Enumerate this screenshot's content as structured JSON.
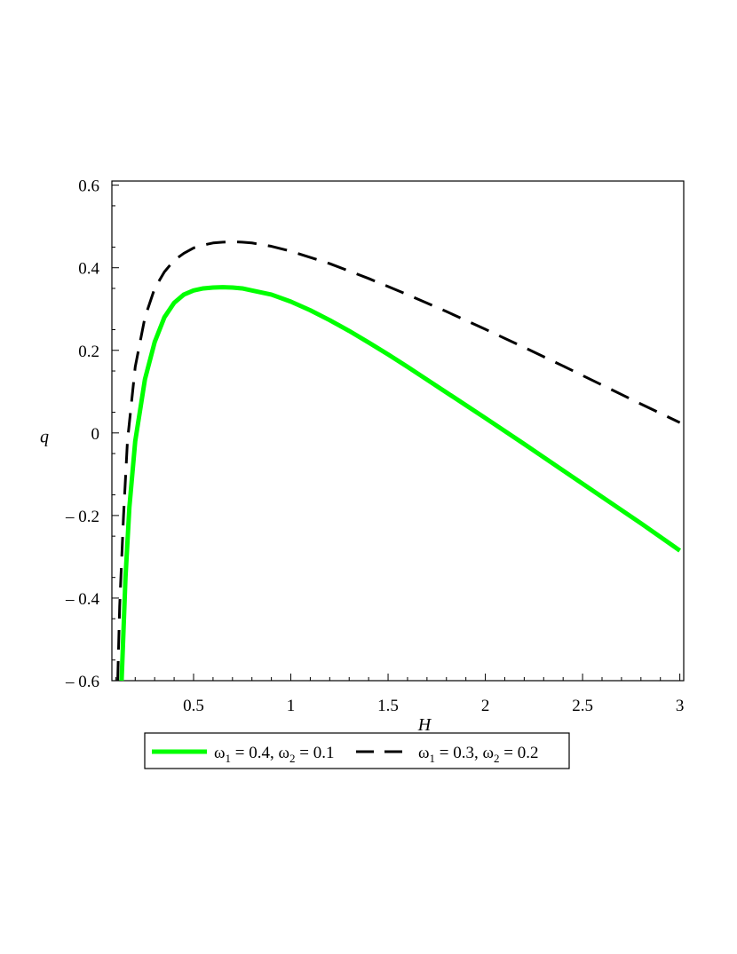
{
  "chart_data": {
    "type": "line",
    "xlabel": "H",
    "ylabel": "q",
    "xlim": [
      0.08,
      3.02
    ],
    "ylim": [
      -0.6,
      0.61
    ],
    "x_ticks": [
      {
        "value": 0.5,
        "label": "0.5"
      },
      {
        "value": 1,
        "label": "1"
      },
      {
        "value": 1.5,
        "label": "1.5"
      },
      {
        "value": 2,
        "label": "2"
      },
      {
        "value": 2.5,
        "label": "2.5"
      },
      {
        "value": 3,
        "label": "3"
      }
    ],
    "y_ticks": [
      {
        "value": -0.6,
        "label": "– 0.6"
      },
      {
        "value": -0.4,
        "label": "– 0.4"
      },
      {
        "value": -0.2,
        "label": "– 0.2"
      },
      {
        "value": 0,
        "label": "0"
      },
      {
        "value": 0.2,
        "label": "0.2"
      },
      {
        "value": 0.4,
        "label": "0.4"
      },
      {
        "value": 0.6,
        "label": "0.6"
      }
    ],
    "grid": false,
    "legend_position": "bottom",
    "series": [
      {
        "name": "ω1 = 0.4, ω2 = 0.1",
        "legend": {
          "w1_value": "0.4",
          "w2_value": "0.1"
        },
        "color": "#00ff00",
        "style": "solid",
        "x": [
          0.13,
          0.15,
          0.17,
          0.2,
          0.25,
          0.3,
          0.35,
          0.4,
          0.45,
          0.5,
          0.55,
          0.6,
          0.65,
          0.7,
          0.75,
          0.8,
          0.9,
          1.0,
          1.1,
          1.2,
          1.3,
          1.4,
          1.5,
          1.6,
          1.7,
          1.8,
          1.9,
          2.0,
          2.2,
          2.4,
          2.6,
          2.8,
          3.0
        ],
        "y": [
          -0.6,
          -0.35,
          -0.18,
          -0.02,
          0.13,
          0.22,
          0.28,
          0.315,
          0.335,
          0.345,
          0.35,
          0.352,
          0.353,
          0.352,
          0.35,
          0.345,
          0.335,
          0.318,
          0.297,
          0.273,
          0.247,
          0.219,
          0.19,
          0.16,
          0.129,
          0.098,
          0.067,
          0.036,
          -0.027,
          -0.091,
          -0.155,
          -0.219,
          -0.285
        ]
      },
      {
        "name": "ω1 = 0.3, ω2 = 0.2",
        "legend": {
          "w1_value": "0.3",
          "w2_value": "0.2"
        },
        "color": "#000000",
        "style": "dashed",
        "x": [
          0.11,
          0.12,
          0.14,
          0.16,
          0.2,
          0.25,
          0.3,
          0.35,
          0.4,
          0.45,
          0.5,
          0.55,
          0.6,
          0.65,
          0.7,
          0.75,
          0.8,
          0.9,
          1.0,
          1.2,
          1.4,
          1.6,
          1.8,
          2.0,
          2.2,
          2.4,
          2.6,
          2.8,
          3.0
        ],
        "y": [
          -0.6,
          -0.42,
          -0.2,
          -0.02,
          0.16,
          0.28,
          0.35,
          0.39,
          0.418,
          0.435,
          0.448,
          0.455,
          0.46,
          0.462,
          0.463,
          0.462,
          0.46,
          0.452,
          0.44,
          0.41,
          0.374,
          0.335,
          0.294,
          0.251,
          0.207,
          0.162,
          0.116,
          0.07,
          0.025
        ]
      }
    ]
  }
}
